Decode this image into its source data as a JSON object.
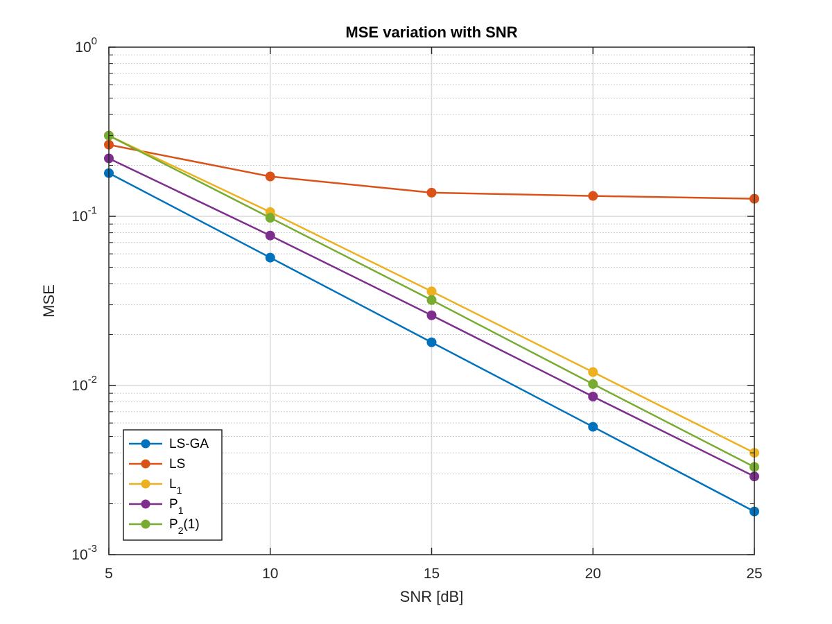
{
  "chart_data": {
    "type": "line",
    "title": "MSE variation with SNR",
    "xlabel": "SNR [dB]",
    "ylabel": "MSE",
    "x": [
      5,
      10,
      15,
      20,
      25
    ],
    "xlim": [
      5,
      25
    ],
    "ylim": [
      0.001,
      1
    ],
    "yscale": "log",
    "grid": true,
    "minor_grid": true,
    "x_ticks": [
      "5",
      "10",
      "15",
      "20",
      "25"
    ],
    "y_ticks": [
      {
        "value": 0.001,
        "base": "10",
        "exp": "-3"
      },
      {
        "value": 0.01,
        "base": "10",
        "exp": "-2"
      },
      {
        "value": 0.1,
        "base": "10",
        "exp": "-1"
      },
      {
        "value": 1,
        "base": "10",
        "exp": "0"
      }
    ],
    "legend_position": "bottom-left",
    "series": [
      {
        "name": "LS-GA",
        "label_main": "LS-GA",
        "label_sub": "",
        "label_tail": "",
        "color": "#0072BD",
        "values": [
          0.18,
          0.057,
          0.018,
          0.0057,
          0.0018
        ]
      },
      {
        "name": "LS",
        "label_main": "LS",
        "label_sub": "",
        "label_tail": "",
        "color": "#D95319",
        "values": [
          0.265,
          0.172,
          0.138,
          0.132,
          0.127
        ]
      },
      {
        "name": "L1",
        "label_main": "L",
        "label_sub": "1",
        "label_tail": "",
        "color": "#EDB120",
        "values": [
          0.3,
          0.106,
          0.036,
          0.012,
          0.004
        ]
      },
      {
        "name": "P1",
        "label_main": "P",
        "label_sub": "1",
        "label_tail": "",
        "color": "#7E2F8E",
        "values": [
          0.22,
          0.077,
          0.026,
          0.0086,
          0.0029
        ]
      },
      {
        "name": "P2(1)",
        "label_main": "P",
        "label_sub": "2",
        "label_tail": "(1)",
        "color": "#77AC30",
        "values": [
          0.3,
          0.098,
          0.032,
          0.0102,
          0.0033
        ]
      }
    ]
  }
}
